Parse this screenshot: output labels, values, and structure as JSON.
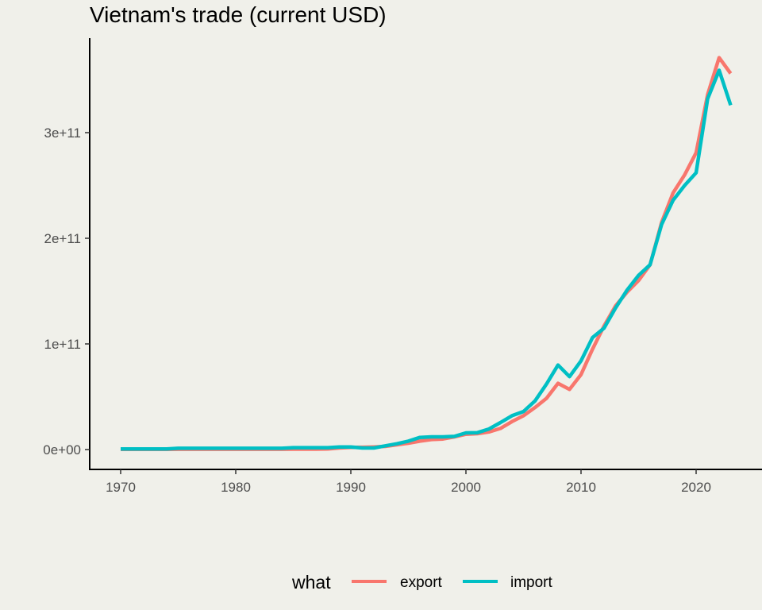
{
  "chart_data": {
    "type": "line",
    "title": "Vietnam's trade (current USD)",
    "xlabel": "",
    "ylabel": "",
    "xlim": [
      1967.5,
      2025.5
    ],
    "ylim": [
      -19000000000.0,
      385000000000.0
    ],
    "x_ticks": [
      1970,
      1980,
      1990,
      2000,
      2010,
      2020
    ],
    "x_tick_labels": [
      "1970",
      "1980",
      "1990",
      "2000",
      "2010",
      "2020"
    ],
    "y_ticks": [
      0,
      100000000000.0,
      200000000000.0,
      300000000000.0
    ],
    "y_tick_labels": [
      "0e+00",
      "1e+11",
      "2e+11",
      "3e+11"
    ],
    "grid": false,
    "legend": {
      "title": "what",
      "position": "bottom"
    },
    "x": [
      1970,
      1971,
      1972,
      1973,
      1974,
      1975,
      1976,
      1977,
      1978,
      1979,
      1980,
      1981,
      1982,
      1983,
      1984,
      1985,
      1986,
      1987,
      1988,
      1989,
      1990,
      1991,
      1992,
      1993,
      1994,
      1995,
      1996,
      1997,
      1998,
      1999,
      2000,
      2001,
      2002,
      2003,
      2004,
      2005,
      2006,
      2007,
      2008,
      2009,
      2010,
      2011,
      2012,
      2013,
      2014,
      2015,
      2016,
      2017,
      2018,
      2019,
      2020,
      2021,
      2022,
      2023
    ],
    "series": [
      {
        "name": "export",
        "color": "#F8766D",
        "values": [
          200000000.0,
          200000000.0,
          200000000.0,
          200000000.0,
          200000000.0,
          300000000.0,
          300000000.0,
          300000000.0,
          300000000.0,
          300000000.0,
          300000000.0,
          300000000.0,
          300000000.0,
          300000000.0,
          300000000.0,
          400000000.0,
          400000000.0,
          400000000.0,
          500000000.0,
          1500000000.0,
          2000000000.0,
          2200000000.0,
          2500000000.0,
          3000000000.0,
          4500000000.0,
          6000000000.0,
          8000000000.0,
          9500000000.0,
          10000000000.0,
          12000000000.0,
          14500000000.0,
          15000000000.0,
          16700000000.0,
          20000000000.0,
          26500000000.0,
          32000000000.0,
          39800000000.0,
          48500000000.0,
          62700000000.0,
          57000000000.0,
          71000000000.0,
          95000000000.0,
          117000000000.0,
          136000000000.0,
          149000000000.0,
          160000000000.0,
          175000000000.0,
          215000000000.0,
          243000000000.0,
          260000000000.0,
          281000000000.0,
          336000000000.0,
          371000000000.0,
          356000000000.0
        ]
      },
      {
        "name": "import",
        "color": "#00BFC4",
        "values": [
          500000000.0,
          500000000.0,
          500000000.0,
          500000000.0,
          500000000.0,
          1200000000.0,
          1200000000.0,
          1200000000.0,
          1200000000.0,
          1200000000.0,
          1200000000.0,
          1200000000.0,
          1200000000.0,
          1200000000.0,
          1200000000.0,
          1800000000.0,
          1800000000.0,
          1800000000.0,
          1800000000.0,
          2500000000.0,
          2500000000.0,
          1500000000.0,
          1500000000.0,
          3500000000.0,
          5500000000.0,
          8000000000.0,
          11500000000.0,
          12000000000.0,
          12000000000.0,
          12500000000.0,
          15800000000.0,
          16000000000.0,
          19500000000.0,
          25600000000.0,
          32000000000.0,
          36000000000.0,
          46000000000.0,
          62000000000.0,
          80000000000.0,
          69000000000.0,
          84000000000.0,
          106000000000.0,
          115000000000.0,
          134000000000.0,
          151000000000.0,
          165000000000.0,
          175000000000.0,
          213000000000.0,
          236000000000.0,
          250000000000.0,
          262000000000.0,
          332000000000.0,
          359000000000.0,
          326000000000.0
        ]
      }
    ]
  }
}
